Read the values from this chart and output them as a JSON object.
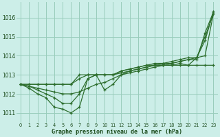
{
  "title": "Graphe pression niveau de la mer (hPa)",
  "background_color": "#cceee8",
  "grid_color": "#99ccbb",
  "line_color": "#2d6e2d",
  "xlim": [
    -0.5,
    23.5
  ],
  "ylim": [
    1010.5,
    1016.8
  ],
  "yticks": [
    1011,
    1012,
    1013,
    1014,
    1015,
    1016
  ],
  "xticks": [
    0,
    1,
    2,
    3,
    4,
    5,
    6,
    7,
    8,
    9,
    10,
    11,
    12,
    13,
    14,
    15,
    16,
    17,
    18,
    19,
    20,
    21,
    22,
    23
  ],
  "series": [
    [
      1012.5,
      1012.4,
      1012.3,
      1012.2,
      1012.1,
      1012.0,
      1012.0,
      1012.1,
      1012.3,
      1012.5,
      1012.6,
      1012.8,
      1013.0,
      1013.1,
      1013.2,
      1013.3,
      1013.4,
      1013.5,
      1013.6,
      1013.7,
      1013.8,
      1013.9,
      1014.0,
      1016.2
    ],
    [
      1012.5,
      1012.3,
      1012.0,
      1011.8,
      1011.3,
      1011.2,
      1011.0,
      1011.3,
      1012.8,
      1013.0,
      1012.2,
      1012.5,
      1013.0,
      1013.2,
      1013.3,
      1013.4,
      1013.5,
      1013.5,
      1013.5,
      1013.5,
      1013.5,
      1013.9,
      1014.8,
      1016.3
    ],
    [
      1012.5,
      1012.5,
      1012.5,
      1012.5,
      1012.5,
      1012.5,
      1012.5,
      1013.0,
      1013.0,
      1013.0,
      1013.0,
      1013.0,
      1013.2,
      1013.3,
      1013.4,
      1013.5,
      1013.5,
      1013.6,
      1013.6,
      1013.7,
      1013.8,
      1013.8,
      1015.2,
      1016.3
    ],
    [
      1012.5,
      1012.5,
      1012.5,
      1012.5,
      1012.5,
      1012.5,
      1012.5,
      1012.8,
      1013.0,
      1013.0,
      1013.0,
      1013.0,
      1013.2,
      1013.3,
      1013.4,
      1013.5,
      1013.6,
      1013.6,
      1013.7,
      1013.8,
      1013.9,
      1013.9,
      1015.0,
      1016.2
    ],
    [
      1012.5,
      1012.4,
      1012.2,
      1012.0,
      1011.8,
      1011.5,
      1011.5,
      1012.0,
      1012.8,
      1013.0,
      1013.0,
      1013.0,
      1013.1,
      1013.2,
      1013.3,
      1013.4,
      1013.5,
      1013.5,
      1013.5,
      1013.6,
      1013.5,
      1013.5,
      1013.5,
      1013.5
    ]
  ]
}
